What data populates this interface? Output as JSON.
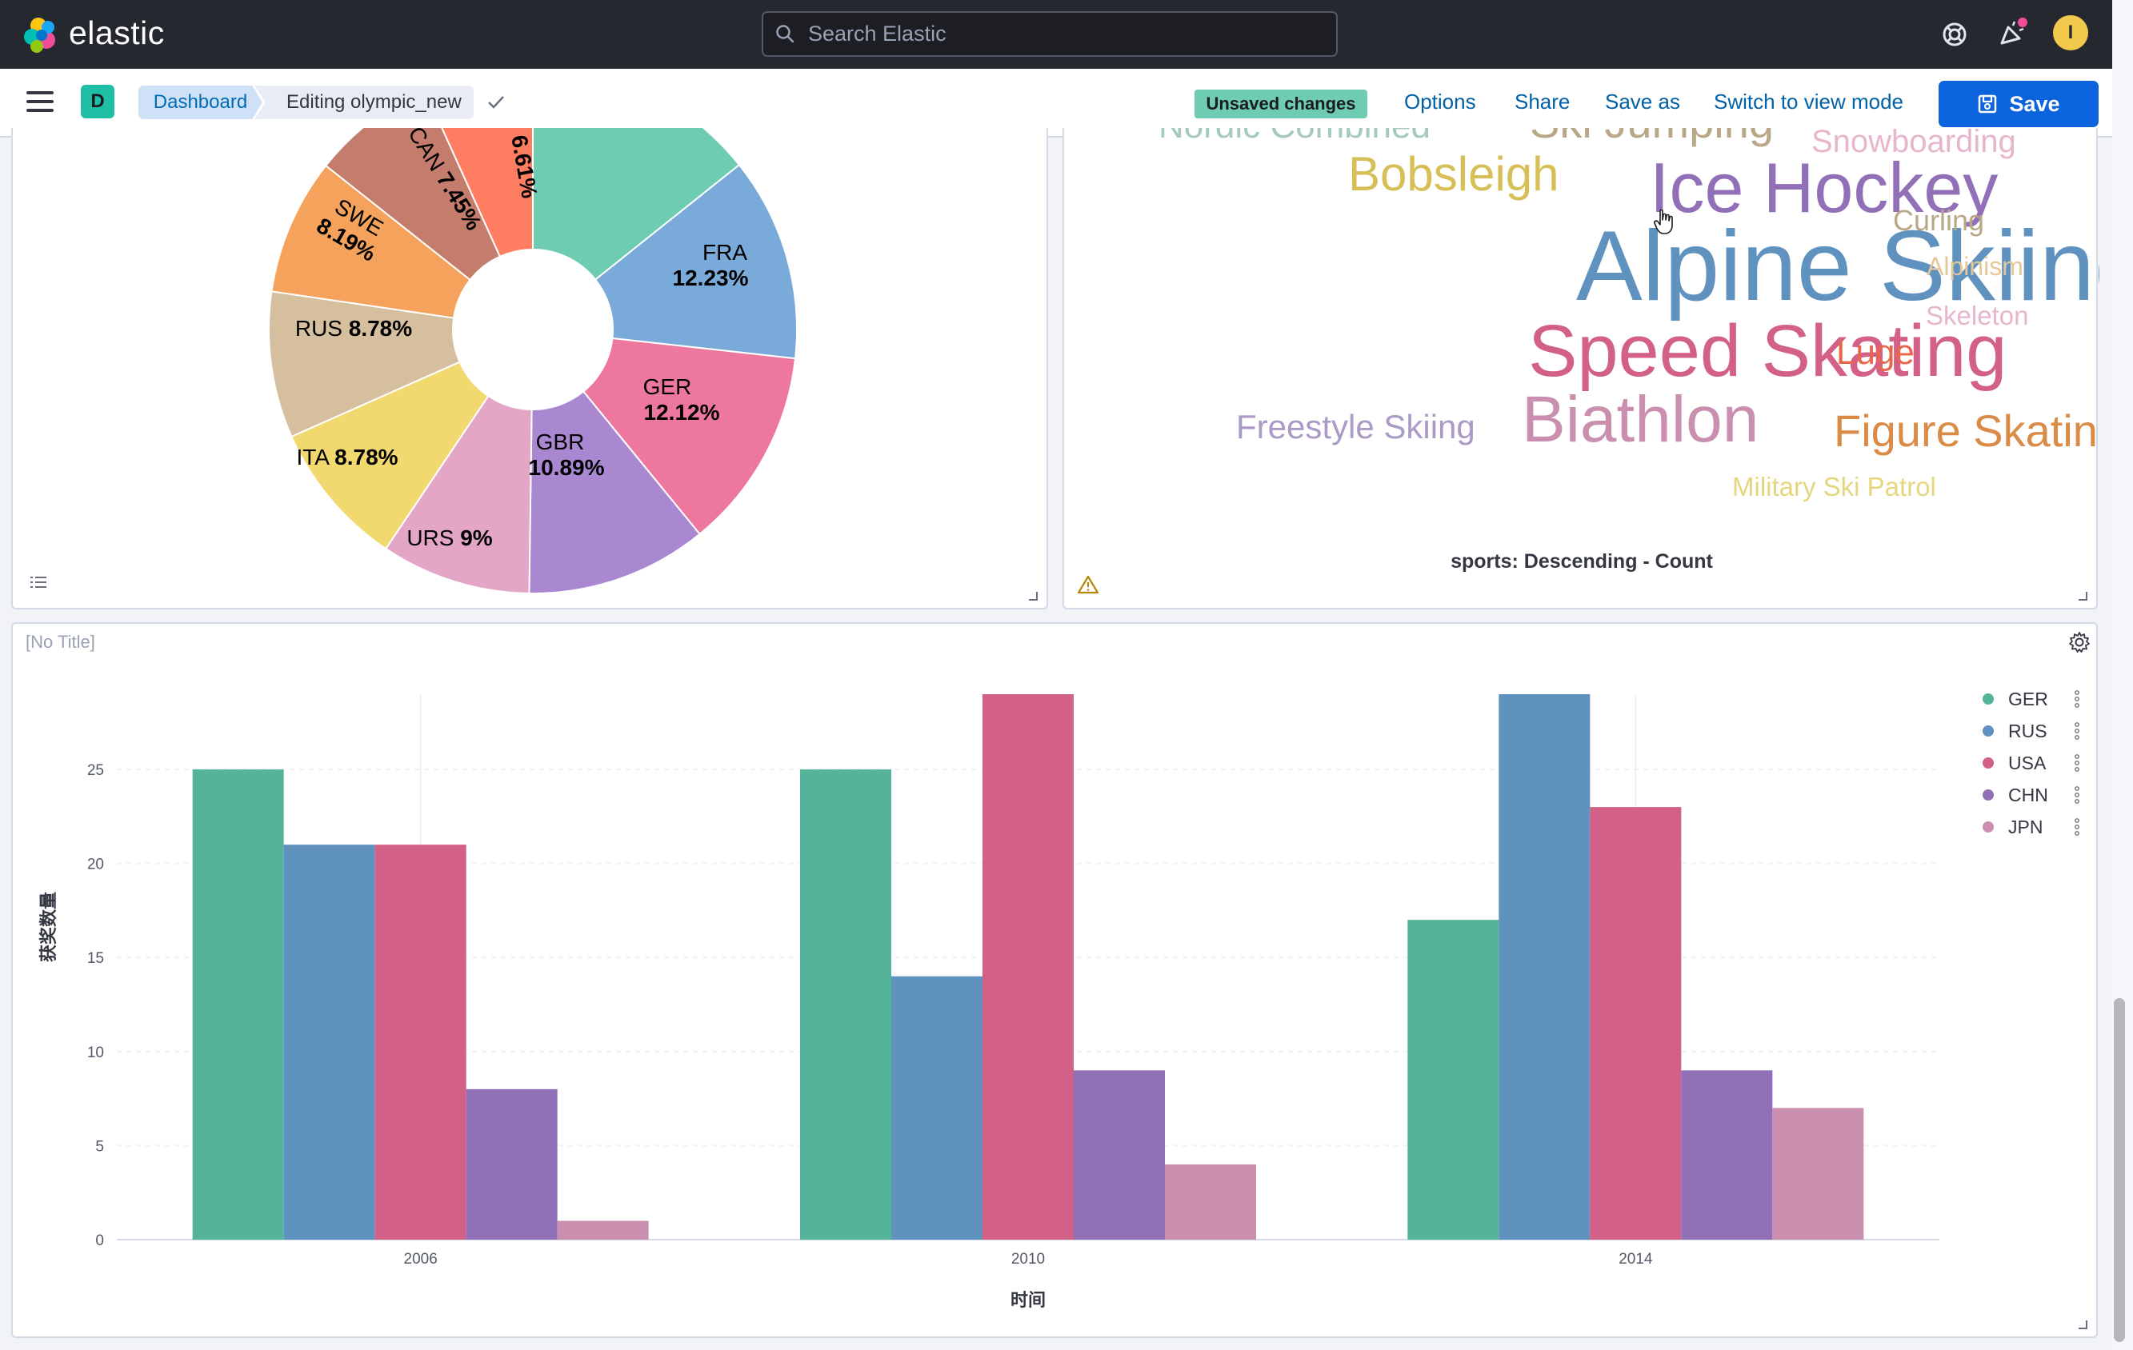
{
  "header": {
    "brand": "elastic",
    "search_placeholder": "Search Elastic",
    "help_icon": "help-icon",
    "news_icon": "newsfeed-icon",
    "user_initial": "I"
  },
  "toolbar": {
    "space_initial": "D",
    "breadcrumb": [
      "Dashboard",
      "Editing olympic_new"
    ],
    "unsaved_badge": "Unsaved changes",
    "options_label": "Options",
    "share_label": "Share",
    "save_as_label": "Save as",
    "switch_mode_label": "Switch to view mode",
    "save_label": "Save"
  },
  "colors": {
    "green": "#54b399",
    "blue": "#6092c0",
    "pink": "#d36086",
    "purple": "#9170b8",
    "lightpink": "#ca8eae"
  },
  "pie_panel": {
    "chart_data": {
      "type": "pie",
      "donut": true,
      "slices": [
        {
          "label": "",
          "value": 14.0,
          "color": "#6dccb1"
        },
        {
          "label": "FRA",
          "value": 12.23,
          "color": "#79aad9"
        },
        {
          "label": "GER",
          "value": 12.12,
          "color": "#ee789d"
        },
        {
          "label": "GBR",
          "value": 10.89,
          "color": "#a987d1"
        },
        {
          "label": "URS",
          "value": 9.0,
          "color": "#e4a6c7"
        },
        {
          "label": "ITA",
          "value": 8.78,
          "color": "#f1d86f"
        },
        {
          "label": "RUS",
          "value": 8.78,
          "color": "#d6bf9f"
        },
        {
          "label": "SWE",
          "value": 8.19,
          "color": "#f5a35c"
        },
        {
          "label": "CAN",
          "value": 7.45,
          "color": "#c47c6c"
        },
        {
          "label": "",
          "value": 6.61,
          "color": "#ff7e62"
        }
      ],
      "labels_visible": [
        "FRA 12.23%",
        "GER 12.12%",
        "GBR 10.89%",
        "URS 9%",
        "ITA 8.78%",
        "RUS 8.78%",
        "SWE 8.19%",
        "CAN 7.45%",
        "6.61%"
      ]
    }
  },
  "cloud_panel": {
    "caption": "sports: Descending - Count",
    "words": [
      {
        "text": "Alpine Skiing",
        "color": "#6092c0"
      },
      {
        "text": "Speed Skating",
        "color": "#d36086"
      },
      {
        "text": "Ice Hockey",
        "color": "#9170b8"
      },
      {
        "text": "Biathlon",
        "color": "#ca8eae"
      },
      {
        "text": "Bobsleigh",
        "color": "#d6bf57"
      },
      {
        "text": "Figure Skating",
        "color": "#da8b45"
      },
      {
        "text": "Freestyle Skiing",
        "color": "#aa9bc6"
      },
      {
        "text": "Luge",
        "color": "#e7664c"
      },
      {
        "text": "Curling",
        "color": "#b9a888"
      },
      {
        "text": "Alpinism",
        "color": "#e5c89a"
      },
      {
        "text": "Skeleton",
        "color": "#e7b6cc"
      },
      {
        "text": "Snowboarding",
        "color": "#e7b6cc"
      },
      {
        "text": "Ski Jumping",
        "color": "#b9a888"
      },
      {
        "text": "Nordic Combined",
        "color": "#a5c9bf"
      },
      {
        "text": "Military Ski Patrol",
        "color": "#e5d67d"
      }
    ]
  },
  "bar_panel": {
    "title": "[No Title]",
    "chart_data": {
      "type": "bar",
      "categories": [
        "2006",
        "2010",
        "2014"
      ],
      "series": [
        {
          "name": "GER",
          "values": [
            25,
            25,
            17
          ],
          "color": "#54b399"
        },
        {
          "name": "RUS",
          "values": [
            21,
            14,
            29
          ],
          "color": "#6092c0"
        },
        {
          "name": "USA",
          "values": [
            21,
            29,
            23
          ],
          "color": "#d36086"
        },
        {
          "name": "CHN",
          "values": [
            8,
            9,
            9
          ],
          "color": "#9170b8"
        },
        {
          "name": "JPN",
          "values": [
            1,
            4,
            7
          ],
          "color": "#ca8eae"
        }
      ],
      "xlabel": "时间",
      "ylabel": "获奖数量",
      "ylim": [
        0,
        29
      ],
      "yticks": [
        "0",
        "5",
        "10",
        "15",
        "20",
        "25"
      ],
      "grid": true,
      "legend_position": "right"
    }
  }
}
